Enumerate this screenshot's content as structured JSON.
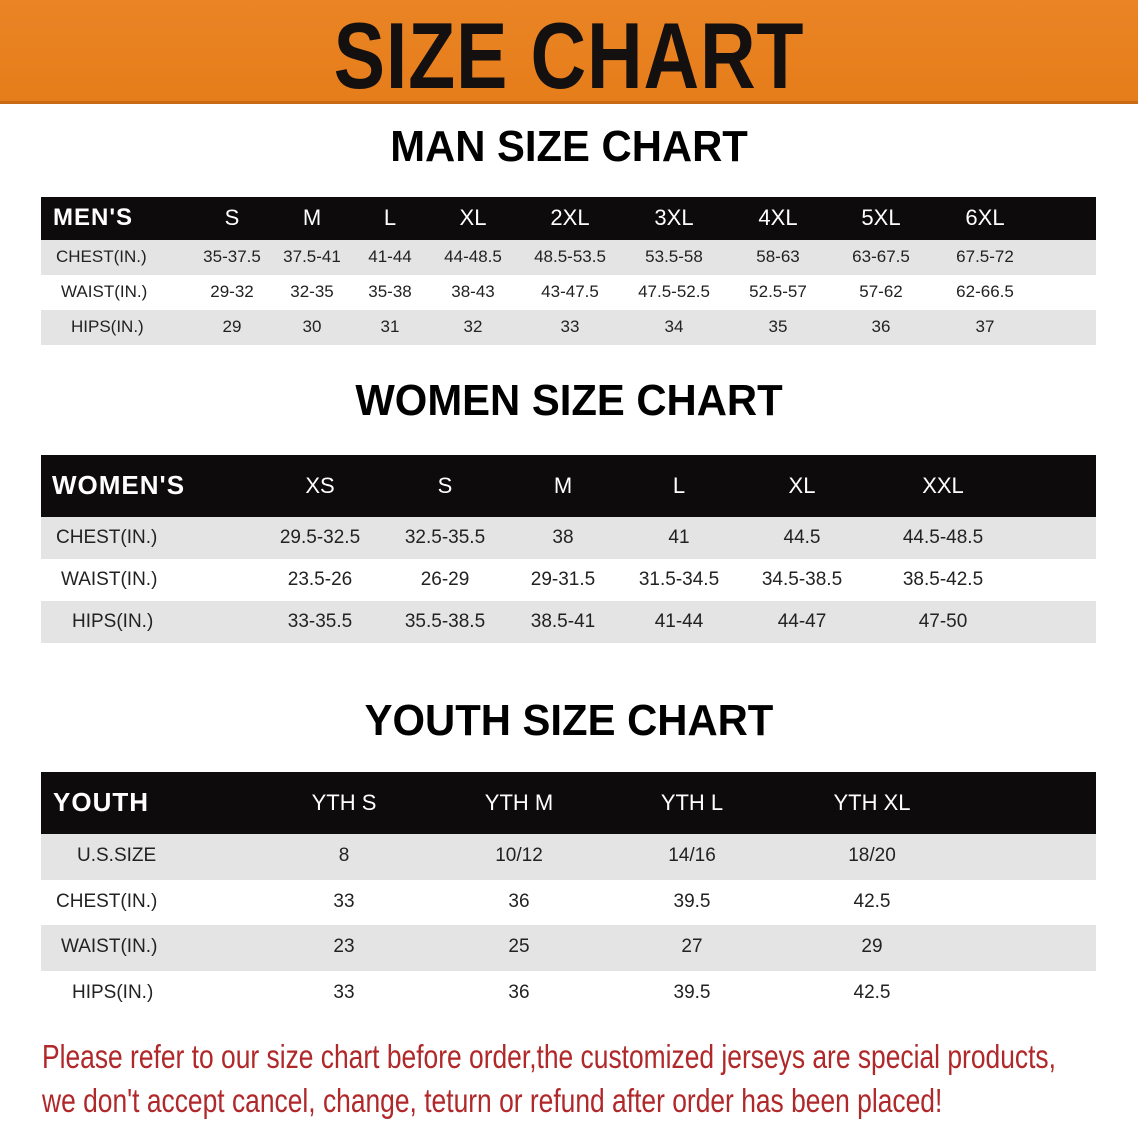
{
  "banner": {
    "title": "SIZE CHART",
    "color": "#e8801e"
  },
  "men": {
    "title": "MAN SIZE CHART",
    "header": [
      "MEN'S",
      "S",
      "M",
      "L",
      "XL",
      "2XL",
      "3XL",
      "4XL",
      "5XL",
      "6XL"
    ],
    "rows": [
      [
        "CHEST(IN.)",
        "35-37.5",
        "37.5-41",
        "41-44",
        "44-48.5",
        "48.5-53.5",
        "53.5-58",
        "58-63",
        "63-67.5",
        "67.5-72"
      ],
      [
        "WAIST(IN.)",
        "29-32",
        "32-35",
        "35-38",
        "38-43",
        "43-47.5",
        "47.5-52.5",
        "52.5-57",
        "57-62",
        "62-66.5"
      ],
      [
        "HIPS(IN.)",
        "29",
        "30",
        "31",
        "32",
        "33",
        "34",
        "35",
        "36",
        "37"
      ]
    ]
  },
  "women": {
    "title": "WOMEN SIZE CHART",
    "header": [
      "WOMEN'S",
      "XS",
      "S",
      "M",
      "L",
      "XL",
      "XXL"
    ],
    "rows": [
      [
        "CHEST(IN.)",
        "29.5-32.5",
        "32.5-35.5",
        "38",
        "41",
        "44.5",
        "44.5-48.5"
      ],
      [
        "WAIST(IN.)",
        "23.5-26",
        "26-29",
        "29-31.5",
        "31.5-34.5",
        "34.5-38.5",
        "38.5-42.5"
      ],
      [
        "HIPS(IN.)",
        "33-35.5",
        "35.5-38.5",
        "38.5-41",
        "41-44",
        "44-47",
        "47-50"
      ]
    ]
  },
  "youth": {
    "title": "YOUTH SIZE CHART",
    "header": [
      "YOUTH",
      "YTH S",
      "YTH M",
      "YTH L",
      "YTH XL"
    ],
    "rows": [
      [
        "U.S.SIZE",
        "8",
        "10/12",
        "14/16",
        "18/20"
      ],
      [
        "CHEST(IN.)",
        "33",
        "36",
        "39.5",
        "42.5"
      ],
      [
        "WAIST(IN.)",
        "23",
        "25",
        "27",
        "29"
      ],
      [
        "HIPS(IN.)",
        "33",
        "36",
        "39.5",
        "42.5"
      ]
    ]
  },
  "note": {
    "line1": "Please refer to our size chart before order,the customized jerseys are special products,",
    "line2": "we don't accept cancel, change, teturn or refund after order has been placed!",
    "color": "#b0282a"
  }
}
